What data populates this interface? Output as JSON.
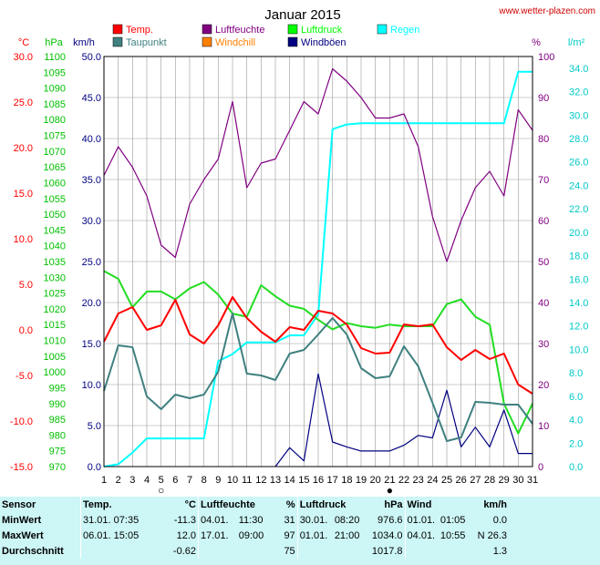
{
  "header": {
    "title": "Januar 2015",
    "site": "www.wetter-plazen.com"
  },
  "axes": {
    "temp_unit": "°C",
    "pressure_unit": "hPa",
    "wind_unit": "km/h",
    "humidity_unit": "%",
    "rain_unit": "l/m²"
  },
  "legend": [
    {
      "key": "temp",
      "label": "Temp.",
      "color": "#ff0000"
    },
    {
      "key": "humidity",
      "label": "Luftfeuchte",
      "color": "#800080"
    },
    {
      "key": "pressure",
      "label": "Luftdruck",
      "color": "#00ff00"
    },
    {
      "key": "rain",
      "label": "Regen",
      "color": "#00ffff"
    },
    {
      "key": "dewpoint",
      "label": "Taupunkt",
      "color": "#408080"
    },
    {
      "key": "windchill",
      "label": "Windchill",
      "color": "#ff8000"
    },
    {
      "key": "gusts",
      "label": "Windböen",
      "color": "#000080"
    }
  ],
  "chart_data": {
    "type": "line",
    "title": "Januar 2015",
    "x": [
      1,
      2,
      3,
      4,
      5,
      6,
      7,
      8,
      9,
      10,
      11,
      12,
      13,
      14,
      15,
      16,
      17,
      18,
      19,
      20,
      21,
      22,
      23,
      24,
      25,
      26,
      27,
      28,
      29,
      30,
      31
    ],
    "x_ticks": [
      "1",
      "2",
      "3",
      "4",
      "5",
      "6",
      "7",
      "8",
      "9",
      "10",
      "11",
      "12",
      "13",
      "14",
      "15",
      "16",
      "17",
      "18",
      "19",
      "20",
      "21",
      "22",
      "23",
      "24",
      "25",
      "26",
      "27",
      "28",
      "29",
      "30",
      "31"
    ],
    "xlim": [
      1,
      31
    ],
    "moon_symbols": [
      {
        "day": 5,
        "phase": "full",
        "symbol": "○"
      },
      {
        "day": 21,
        "phase": "new",
        "symbol": "●"
      }
    ],
    "y_axes": {
      "temperature": {
        "unit": "°C",
        "range": [
          -15,
          30
        ],
        "ticks": [
          "30.0",
          "25.0",
          "20.0",
          "15.0",
          "10.0",
          "5.0",
          "0.0",
          "-5.0",
          "-10.0",
          "-15.0"
        ],
        "color": "#ff0000"
      },
      "pressure": {
        "unit": "hPa",
        "range": [
          970,
          1100
        ],
        "ticks": [
          "1100",
          "1095",
          "1090",
          "1085",
          "1080",
          "1075",
          "1070",
          "1065",
          "1060",
          "1055",
          "1050",
          "1045",
          "1040",
          "1035",
          "1030",
          "1025",
          "1020",
          "1015",
          "1010",
          "1005",
          "1000",
          "995",
          "990",
          "985",
          "980",
          "975",
          "970"
        ],
        "color": "#00c000"
      },
      "wind": {
        "unit": "km/h",
        "range": [
          0,
          50
        ],
        "ticks": [
          "50.0",
          "45.0",
          "40.0",
          "35.0",
          "30.0",
          "25.0",
          "20.0",
          "15.0",
          "10.0",
          "5.0",
          "0.0"
        ],
        "color": "#000080"
      },
      "humidity": {
        "unit": "%",
        "range": [
          0,
          100
        ],
        "ticks": [
          "100",
          "90",
          "80",
          "70",
          "60",
          "50",
          "40",
          "30",
          "20",
          "10",
          "0"
        ],
        "color": "#800080"
      },
      "rain": {
        "unit": "l/m²",
        "range": [
          0,
          35
        ],
        "ticks": [
          "34.0",
          "32.0",
          "30.0",
          "28.0",
          "26.0",
          "24.0",
          "22.0",
          "20.0",
          "18.0",
          "16.0",
          "14.0",
          "12.0",
          "10.0",
          "8.0",
          "6.0",
          "4.0",
          "2.0",
          "0.0"
        ],
        "color": "#00c8c8"
      }
    },
    "grid": true,
    "series": [
      {
        "name": "Temp.",
        "axis": "temperature",
        "color": "#ff0000",
        "values": [
          -1.3,
          1.8,
          2.5,
          0.0,
          0.5,
          3.3,
          -0.5,
          -1.5,
          0.5,
          3.6,
          1.3,
          -0.2,
          -1.3,
          0.3,
          0.0,
          2.1,
          1.8,
          0.6,
          -2.0,
          -2.6,
          -2.5,
          0.6,
          0.4,
          0.6,
          -1.9,
          -3.3,
          -2.2,
          -3.2,
          -2.6,
          -6.0,
          -7.0
        ]
      },
      {
        "name": "Taupunkt",
        "axis": "temperature",
        "color": "#408080",
        "values": [
          -6.7,
          -1.7,
          -1.9,
          -7.3,
          -8.7,
          -7.1,
          -7.5,
          -7.1,
          -4.6,
          1.8,
          -4.8,
          -5.0,
          -5.5,
          -2.6,
          -2.2,
          -0.5,
          1.3,
          -0.5,
          -4.2,
          -5.3,
          -5.1,
          -1.8,
          -4.0,
          -8.0,
          -12.2,
          -11.8,
          -7.9,
          -8.0,
          -8.2,
          -8.2,
          -10.3
        ]
      },
      {
        "name": "Luftfeuchte",
        "axis": "humidity",
        "color": "#800080",
        "values": [
          71,
          78,
          73,
          66,
          54,
          51,
          64,
          70,
          75,
          89,
          68,
          74,
          75,
          82,
          89,
          86,
          97,
          94,
          90,
          85,
          85,
          86,
          78,
          61,
          50,
          60,
          68,
          72,
          66,
          87,
          82
        ]
      },
      {
        "name": "Luftdruck",
        "axis": "pressure",
        "color": "#00ff00",
        "values": [
          1032.0,
          1029.5,
          1020.5,
          1025.5,
          1025.5,
          1023.0,
          1026.5,
          1028.5,
          1024.5,
          1018.5,
          1017.5,
          1027.5,
          1024.0,
          1021.0,
          1020.0,
          1016.5,
          1013.5,
          1015.5,
          1014.5,
          1014.0,
          1015.0,
          1014.5,
          1014.5,
          1014.5,
          1021.5,
          1023.0,
          1017.5,
          1015.0,
          990.0,
          980.5,
          990.0
        ]
      },
      {
        "name": "Regen",
        "axis": "rain",
        "color": "#00ffff",
        "values": [
          0.0,
          0.2,
          1.2,
          2.4,
          2.4,
          2.4,
          2.4,
          2.4,
          9.0,
          9.6,
          10.6,
          10.6,
          10.6,
          11.2,
          11.2,
          13.0,
          28.8,
          29.2,
          29.3,
          29.3,
          29.3,
          29.3,
          29.3,
          29.3,
          29.3,
          29.3,
          29.3,
          29.3,
          29.3,
          33.7,
          33.7
        ]
      },
      {
        "name": "Windböen",
        "axis": "wind",
        "color": "#000080",
        "values": [
          null,
          null,
          null,
          null,
          null,
          null,
          null,
          null,
          null,
          null,
          null,
          null,
          0.0,
          2.3,
          0.7,
          11.3,
          3.0,
          2.4,
          1.9,
          1.9,
          1.9,
          2.6,
          3.8,
          3.5,
          9.3,
          2.4,
          4.8,
          2.4,
          6.9,
          1.6,
          1.6
        ]
      }
    ]
  },
  "stats_table": {
    "headers": {
      "sensor": "Sensor",
      "temp": "Temp.",
      "temp_unit": "°C",
      "humidity": "Luftfeuchte",
      "humidity_unit": "%",
      "pressure": "Luftdruck",
      "pressure_unit": "hPa",
      "wind": "Wind",
      "wind_unit": "km/h"
    },
    "rows": [
      {
        "label": "MinWert",
        "temp_date": "31.01.",
        "temp_time": "07:35",
        "temp_val": "-11.3",
        "hum_date": "04.01.",
        "hum_time": "11:30",
        "hum_val": "31",
        "press_date": "30.01.",
        "press_time": "08:20",
        "press_val": "976.6",
        "wind_date": "01.01.",
        "wind_time": "01:05",
        "wind_val": "0.0"
      },
      {
        "label": "MaxWert",
        "temp_date": "06.01.",
        "temp_time": "15:05",
        "temp_val": "12.0",
        "hum_date": "17.01.",
        "hum_time": "09:00",
        "hum_val": "97",
        "press_date": "01.01.",
        "press_time": "21:00",
        "press_val": "1034.0",
        "wind_date": "04.01.",
        "wind_time": "10:55",
        "wind_val": "N 26.3"
      },
      {
        "label": "Durchschnitt",
        "temp_date": "",
        "temp_time": "",
        "temp_val": "-0.62",
        "hum_date": "",
        "hum_time": "",
        "hum_val": "75",
        "press_date": "",
        "press_time": "",
        "press_val": "1017.8",
        "wind_date": "",
        "wind_time": "",
        "wind_val": "1.3"
      }
    ]
  }
}
